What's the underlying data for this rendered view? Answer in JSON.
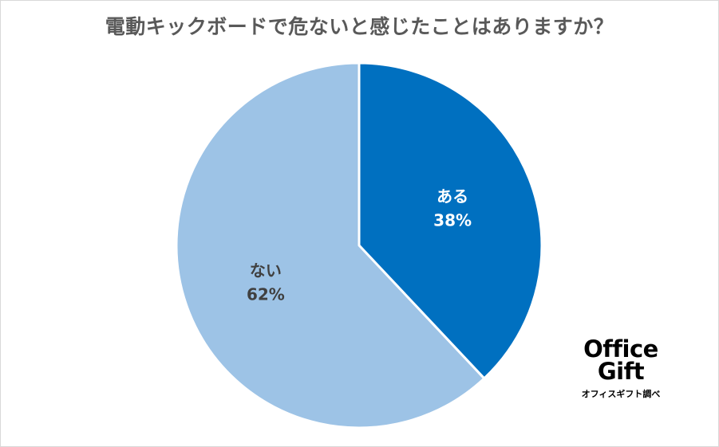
{
  "chart_data": {
    "type": "pie",
    "title": "電動キックボードで危ないと感じたことはありますか？",
    "categories": [
      "ある",
      "ない"
    ],
    "values": [
      38,
      62
    ],
    "labels": [
      "38%",
      "62%"
    ],
    "colors": [
      "#0070c0",
      "#9dc3e6"
    ],
    "label_colors": [
      "#ffffff",
      "#404040"
    ],
    "legend": "none"
  },
  "logo": {
    "line1": "Office",
    "line2": "Gift",
    "subtitle": "オフィスギフト調べ"
  }
}
